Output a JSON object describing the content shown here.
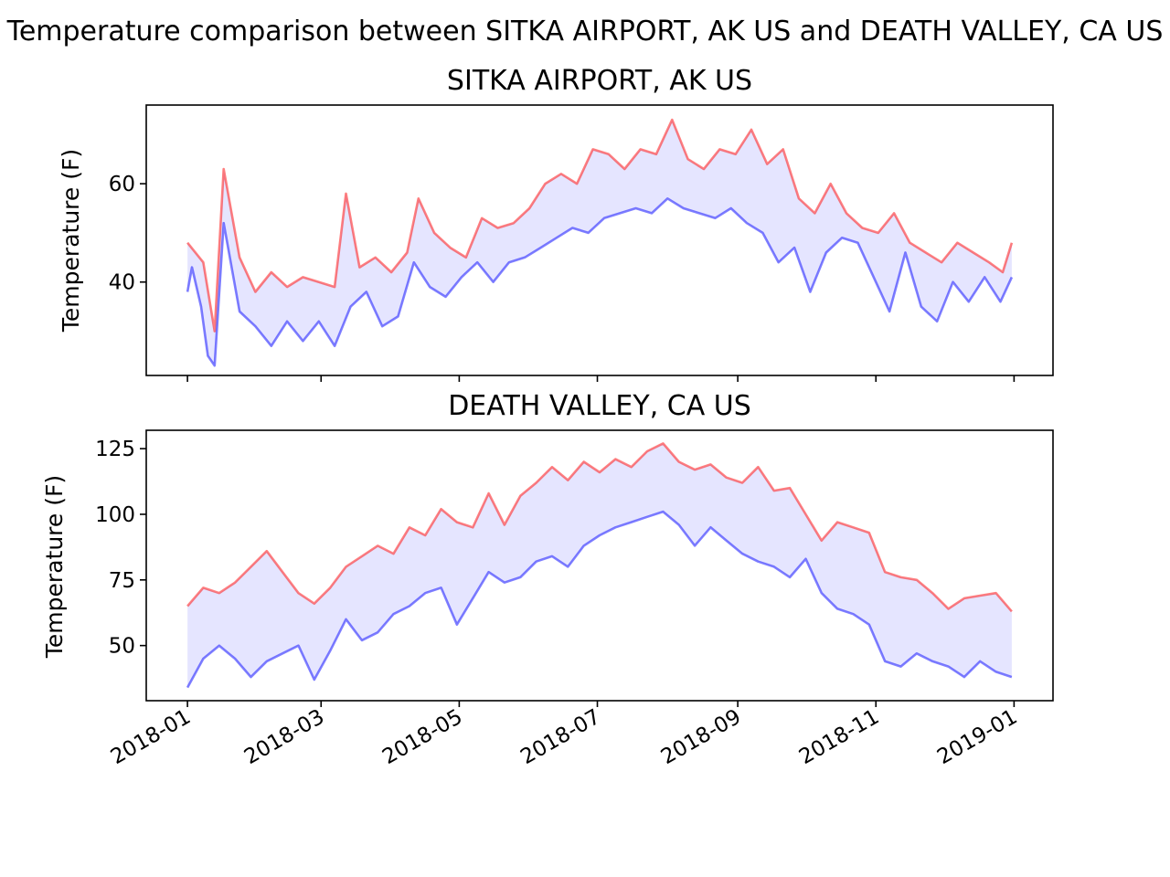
{
  "figure": {
    "suptitle": "Temperature comparison between SITKA AIRPORT, AK US and DEATH VALLEY, CA US"
  },
  "colors": {
    "high": "#ff0000",
    "low": "#0000ff",
    "fill": "#0000ff"
  },
  "chart_data": [
    {
      "type": "line",
      "title": "SITKA AIRPORT, AK US",
      "xlabel": "",
      "ylabel": "Temperature (F)",
      "x_range": [
        "2018-01-01",
        "2018-12-31"
      ],
      "ylim": [
        21,
        76
      ],
      "yticks": [
        40,
        60
      ],
      "xtick_labels_visible": false,
      "fill_between": true,
      "grid": false,
      "series": [
        {
          "role": "high",
          "points": [
            [
              "2018-01-01",
              48
            ],
            [
              "2018-01-08",
              44
            ],
            [
              "2018-01-13",
              30
            ],
            [
              "2018-01-17",
              63
            ],
            [
              "2018-01-24",
              45
            ],
            [
              "2018-01-31",
              38
            ],
            [
              "2018-02-07",
              42
            ],
            [
              "2018-02-14",
              39
            ],
            [
              "2018-02-21",
              41
            ],
            [
              "2018-02-28",
              40
            ],
            [
              "2018-03-07",
              39
            ],
            [
              "2018-03-12",
              58
            ],
            [
              "2018-03-18",
              43
            ],
            [
              "2018-03-25",
              45
            ],
            [
              "2018-04-01",
              42
            ],
            [
              "2018-04-08",
              46
            ],
            [
              "2018-04-13",
              57
            ],
            [
              "2018-04-20",
              50
            ],
            [
              "2018-04-27",
              47
            ],
            [
              "2018-05-04",
              45
            ],
            [
              "2018-05-11",
              53
            ],
            [
              "2018-05-18",
              51
            ],
            [
              "2018-05-25",
              52
            ],
            [
              "2018-06-01",
              55
            ],
            [
              "2018-06-08",
              60
            ],
            [
              "2018-06-15",
              62
            ],
            [
              "2018-06-22",
              60
            ],
            [
              "2018-06-29",
              67
            ],
            [
              "2018-07-06",
              66
            ],
            [
              "2018-07-13",
              63
            ],
            [
              "2018-07-20",
              67
            ],
            [
              "2018-07-27",
              66
            ],
            [
              "2018-08-03",
              73
            ],
            [
              "2018-08-10",
              65
            ],
            [
              "2018-08-17",
              63
            ],
            [
              "2018-08-24",
              67
            ],
            [
              "2018-08-31",
              66
            ],
            [
              "2018-09-07",
              71
            ],
            [
              "2018-09-14",
              64
            ],
            [
              "2018-09-21",
              67
            ],
            [
              "2018-09-28",
              57
            ],
            [
              "2018-10-05",
              54
            ],
            [
              "2018-10-12",
              60
            ],
            [
              "2018-10-19",
              54
            ],
            [
              "2018-10-26",
              51
            ],
            [
              "2018-11-02",
              50
            ],
            [
              "2018-11-09",
              54
            ],
            [
              "2018-11-16",
              48
            ],
            [
              "2018-11-23",
              46
            ],
            [
              "2018-11-30",
              44
            ],
            [
              "2018-12-07",
              48
            ],
            [
              "2018-12-14",
              46
            ],
            [
              "2018-12-21",
              44
            ],
            [
              "2018-12-27",
              42
            ],
            [
              "2018-12-31",
              48
            ]
          ]
        },
        {
          "role": "low",
          "points": [
            [
              "2018-01-01",
              38
            ],
            [
              "2018-01-03",
              43
            ],
            [
              "2018-01-07",
              35
            ],
            [
              "2018-01-10",
              25
            ],
            [
              "2018-01-13",
              23
            ],
            [
              "2018-01-17",
              52
            ],
            [
              "2018-01-24",
              34
            ],
            [
              "2018-01-31",
              31
            ],
            [
              "2018-02-07",
              27
            ],
            [
              "2018-02-14",
              32
            ],
            [
              "2018-02-21",
              28
            ],
            [
              "2018-02-28",
              32
            ],
            [
              "2018-03-07",
              27
            ],
            [
              "2018-03-14",
              35
            ],
            [
              "2018-03-21",
              38
            ],
            [
              "2018-03-28",
              31
            ],
            [
              "2018-04-04",
              33
            ],
            [
              "2018-04-11",
              44
            ],
            [
              "2018-04-18",
              39
            ],
            [
              "2018-04-25",
              37
            ],
            [
              "2018-05-02",
              41
            ],
            [
              "2018-05-09",
              44
            ],
            [
              "2018-05-16",
              40
            ],
            [
              "2018-05-23",
              44
            ],
            [
              "2018-05-30",
              45
            ],
            [
              "2018-06-06",
              47
            ],
            [
              "2018-06-13",
              49
            ],
            [
              "2018-06-20",
              51
            ],
            [
              "2018-06-27",
              50
            ],
            [
              "2018-07-04",
              53
            ],
            [
              "2018-07-11",
              54
            ],
            [
              "2018-07-18",
              55
            ],
            [
              "2018-07-25",
              54
            ],
            [
              "2018-08-01",
              57
            ],
            [
              "2018-08-08",
              55
            ],
            [
              "2018-08-15",
              54
            ],
            [
              "2018-08-22",
              53
            ],
            [
              "2018-08-29",
              55
            ],
            [
              "2018-09-05",
              52
            ],
            [
              "2018-09-12",
              50
            ],
            [
              "2018-09-19",
              44
            ],
            [
              "2018-09-26",
              47
            ],
            [
              "2018-10-03",
              38
            ],
            [
              "2018-10-10",
              46
            ],
            [
              "2018-10-17",
              49
            ],
            [
              "2018-10-24",
              48
            ],
            [
              "2018-10-31",
              41
            ],
            [
              "2018-11-07",
              34
            ],
            [
              "2018-11-14",
              46
            ],
            [
              "2018-11-21",
              35
            ],
            [
              "2018-11-28",
              32
            ],
            [
              "2018-12-05",
              40
            ],
            [
              "2018-12-12",
              36
            ],
            [
              "2018-12-19",
              41
            ],
            [
              "2018-12-26",
              36
            ],
            [
              "2018-12-31",
              41
            ]
          ]
        }
      ]
    },
    {
      "type": "line",
      "title": "DEATH VALLEY, CA US",
      "xlabel": "",
      "ylabel": "Temperature (F)",
      "x_range": [
        "2018-01-01",
        "2018-12-31"
      ],
      "ylim": [
        29,
        132
      ],
      "yticks": [
        50,
        75,
        100,
        125
      ],
      "xticks": [
        "2018-01",
        "2018-03",
        "2018-05",
        "2018-07",
        "2018-09",
        "2018-11",
        "2019-01"
      ],
      "xtick_labels_visible": true,
      "fill_between": true,
      "grid": false,
      "series": [
        {
          "role": "high",
          "points": [
            [
              "2018-01-01",
              65
            ],
            [
              "2018-01-08",
              72
            ],
            [
              "2018-01-15",
              70
            ],
            [
              "2018-01-22",
              74
            ],
            [
              "2018-01-29",
              80
            ],
            [
              "2018-02-05",
              86
            ],
            [
              "2018-02-12",
              78
            ],
            [
              "2018-02-19",
              70
            ],
            [
              "2018-02-26",
              66
            ],
            [
              "2018-03-05",
              72
            ],
            [
              "2018-03-12",
              80
            ],
            [
              "2018-03-19",
              84
            ],
            [
              "2018-03-26",
              88
            ],
            [
              "2018-04-02",
              85
            ],
            [
              "2018-04-09",
              95
            ],
            [
              "2018-04-16",
              92
            ],
            [
              "2018-04-23",
              102
            ],
            [
              "2018-04-30",
              97
            ],
            [
              "2018-05-07",
              95
            ],
            [
              "2018-05-14",
              108
            ],
            [
              "2018-05-21",
              96
            ],
            [
              "2018-05-28",
              107
            ],
            [
              "2018-06-04",
              112
            ],
            [
              "2018-06-11",
              118
            ],
            [
              "2018-06-18",
              113
            ],
            [
              "2018-06-25",
              120
            ],
            [
              "2018-07-02",
              116
            ],
            [
              "2018-07-09",
              121
            ],
            [
              "2018-07-16",
              118
            ],
            [
              "2018-07-23",
              124
            ],
            [
              "2018-07-30",
              127
            ],
            [
              "2018-08-06",
              120
            ],
            [
              "2018-08-13",
              117
            ],
            [
              "2018-08-20",
              119
            ],
            [
              "2018-08-27",
              114
            ],
            [
              "2018-09-03",
              112
            ],
            [
              "2018-09-10",
              118
            ],
            [
              "2018-09-17",
              109
            ],
            [
              "2018-09-24",
              110
            ],
            [
              "2018-10-01",
              100
            ],
            [
              "2018-10-08",
              90
            ],
            [
              "2018-10-15",
              97
            ],
            [
              "2018-10-22",
              95
            ],
            [
              "2018-10-29",
              93
            ],
            [
              "2018-11-05",
              78
            ],
            [
              "2018-11-12",
              76
            ],
            [
              "2018-11-19",
              75
            ],
            [
              "2018-11-26",
              70
            ],
            [
              "2018-12-03",
              64
            ],
            [
              "2018-12-10",
              68
            ],
            [
              "2018-12-17",
              69
            ],
            [
              "2018-12-24",
              70
            ],
            [
              "2018-12-31",
              63
            ]
          ]
        },
        {
          "role": "low",
          "points": [
            [
              "2018-01-01",
              34
            ],
            [
              "2018-01-08",
              45
            ],
            [
              "2018-01-15",
              50
            ],
            [
              "2018-01-22",
              45
            ],
            [
              "2018-01-29",
              38
            ],
            [
              "2018-02-05",
              44
            ],
            [
              "2018-02-12",
              47
            ],
            [
              "2018-02-19",
              50
            ],
            [
              "2018-02-26",
              37
            ],
            [
              "2018-03-05",
              48
            ],
            [
              "2018-03-12",
              60
            ],
            [
              "2018-03-19",
              52
            ],
            [
              "2018-03-26",
              55
            ],
            [
              "2018-04-02",
              62
            ],
            [
              "2018-04-09",
              65
            ],
            [
              "2018-04-16",
              70
            ],
            [
              "2018-04-23",
              72
            ],
            [
              "2018-04-30",
              58
            ],
            [
              "2018-05-07",
              68
            ],
            [
              "2018-05-14",
              78
            ],
            [
              "2018-05-21",
              74
            ],
            [
              "2018-05-28",
              76
            ],
            [
              "2018-06-04",
              82
            ],
            [
              "2018-06-11",
              84
            ],
            [
              "2018-06-18",
              80
            ],
            [
              "2018-06-25",
              88
            ],
            [
              "2018-07-02",
              92
            ],
            [
              "2018-07-09",
              95
            ],
            [
              "2018-07-16",
              97
            ],
            [
              "2018-07-23",
              99
            ],
            [
              "2018-07-30",
              101
            ],
            [
              "2018-08-06",
              96
            ],
            [
              "2018-08-13",
              88
            ],
            [
              "2018-08-20",
              95
            ],
            [
              "2018-08-27",
              90
            ],
            [
              "2018-09-03",
              85
            ],
            [
              "2018-09-10",
              82
            ],
            [
              "2018-09-17",
              80
            ],
            [
              "2018-09-24",
              76
            ],
            [
              "2018-10-01",
              83
            ],
            [
              "2018-10-08",
              70
            ],
            [
              "2018-10-15",
              64
            ],
            [
              "2018-10-22",
              62
            ],
            [
              "2018-10-29",
              58
            ],
            [
              "2018-11-05",
              44
            ],
            [
              "2018-11-12",
              42
            ],
            [
              "2018-11-19",
              47
            ],
            [
              "2018-11-26",
              44
            ],
            [
              "2018-12-03",
              42
            ],
            [
              "2018-12-10",
              38
            ],
            [
              "2018-12-17",
              44
            ],
            [
              "2018-12-24",
              40
            ],
            [
              "2018-12-31",
              38
            ]
          ]
        }
      ]
    }
  ]
}
